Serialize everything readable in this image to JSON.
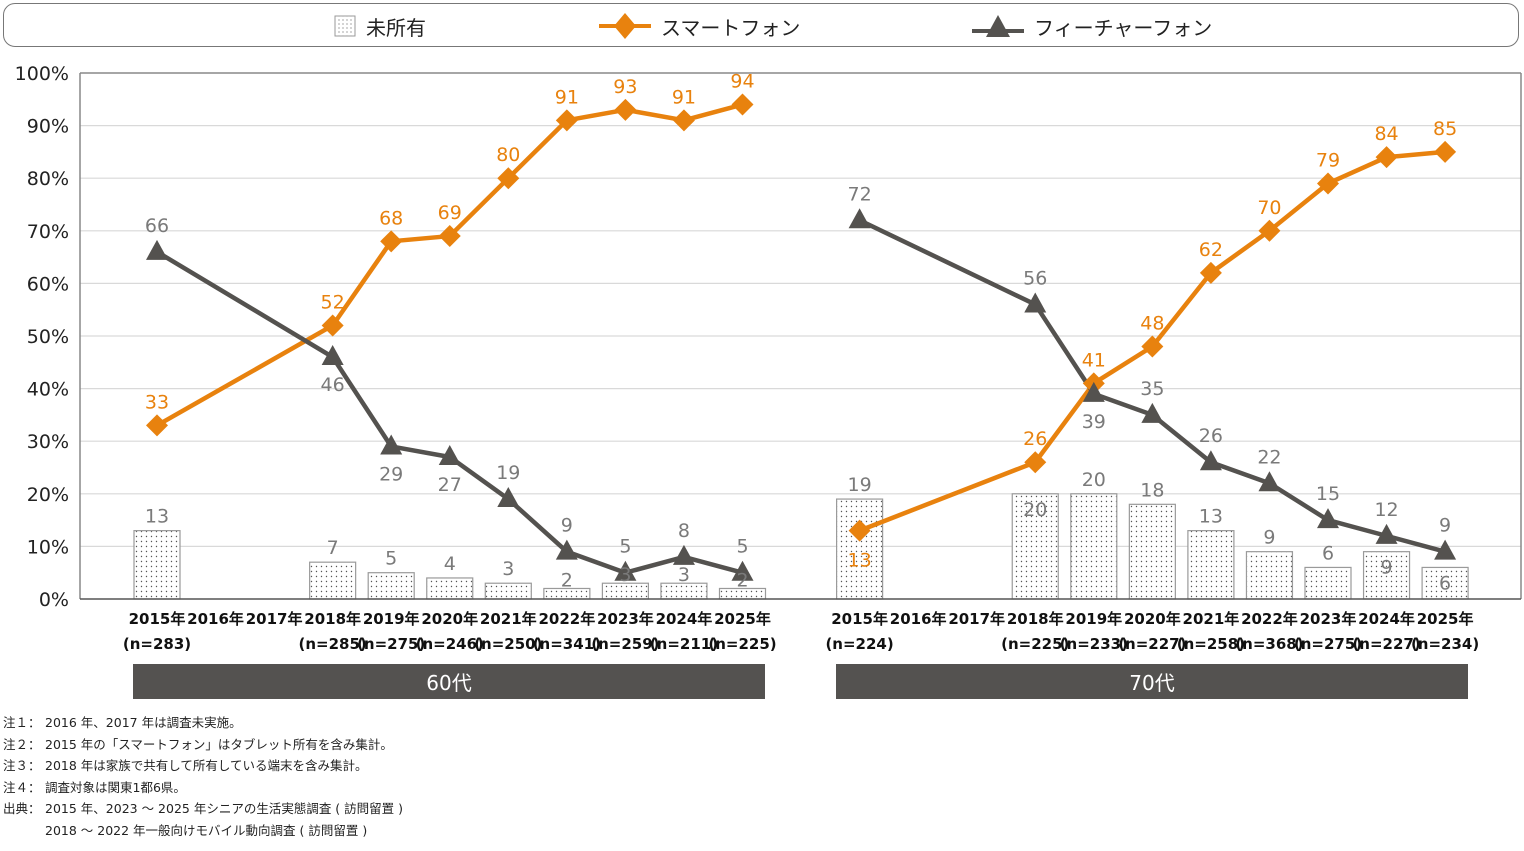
{
  "legend": {
    "items": [
      {
        "name": "未所有",
        "icon": "dotted-box-icon"
      },
      {
        "name": "スマートフォン",
        "icon": "orange-diamond-line-icon"
      },
      {
        "name": "フィーチャーフォン",
        "icon": "dark-triangle-line-icon"
      }
    ]
  },
  "colors": {
    "smartphone": "#E8820E",
    "featurephone": "#54524F",
    "label_gray": "#7A7A7A",
    "bar_border": "#9A9A9A",
    "panel_bar": "#545250"
  },
  "panels": [
    {
      "label": "60代"
    },
    {
      "label": "70代"
    }
  ],
  "chart_data": {
    "type": "bar+line",
    "title": "",
    "xlabel": "",
    "ylabel": "",
    "ylim": [
      0,
      100
    ],
    "yticks": [
      "0%",
      "10%",
      "20%",
      "30%",
      "40%",
      "50%",
      "60%",
      "70%",
      "80%",
      "90%",
      "100%"
    ],
    "grid": true,
    "legend_position": "top",
    "groups": [
      {
        "name": "60代",
        "categories": [
          "2015年",
          "2016年",
          "2017年",
          "2018年",
          "2019年",
          "2020年",
          "2021年",
          "2022年",
          "2023年",
          "2024年",
          "2025年"
        ],
        "n_labels": [
          "(n=283)",
          "",
          "",
          "(n=285)",
          "(n=275)",
          "(n=246)",
          "(n=250)",
          "(n=341)",
          "(n=259)",
          "(n=211)",
          "(n=225)"
        ],
        "series": [
          {
            "name": "未所有",
            "type": "bar",
            "values": [
              13,
              null,
              null,
              7,
              5,
              4,
              3,
              2,
              3,
              3,
              2
            ]
          },
          {
            "name": "スマートフォン",
            "type": "line",
            "values": [
              33,
              null,
              null,
              52,
              68,
              69,
              80,
              91,
              93,
              91,
              94
            ]
          },
          {
            "name": "フィーチャーフォン",
            "type": "line",
            "values": [
              66,
              null,
              null,
              46,
              29,
              27,
              19,
              9,
              5,
              8,
              5
            ]
          }
        ]
      },
      {
        "name": "70代",
        "categories": [
          "2015年",
          "2016年",
          "2017年",
          "2018年",
          "2019年",
          "2020年",
          "2021年",
          "2022年",
          "2023年",
          "2024年",
          "2025年"
        ],
        "n_labels": [
          "(n=224)",
          "",
          "",
          "(n=225)",
          "(n=233)",
          "(n=227)",
          "(n=258)",
          "(n=368)",
          "(n=275)",
          "(n=227)",
          "(n=234)"
        ],
        "series": [
          {
            "name": "未所有",
            "type": "bar",
            "values": [
              19,
              null,
              null,
              20,
              20,
              18,
              13,
              9,
              6,
              9,
              6
            ]
          },
          {
            "name": "スマートフォン",
            "type": "line",
            "values": [
              13,
              null,
              null,
              26,
              41,
              48,
              62,
              70,
              79,
              84,
              85
            ]
          },
          {
            "name": "フィーチャーフォン",
            "type": "line",
            "values": [
              72,
              null,
              null,
              56,
              39,
              35,
              26,
              22,
              15,
              12,
              9
            ]
          }
        ]
      }
    ]
  },
  "notes": [
    {
      "key": "注１：",
      "text": "2016 年、2017 年は調査未実施。"
    },
    {
      "key": "注２：",
      "text": "2015 年の「スマートフォン」はタブレット所有を含み集計。"
    },
    {
      "key": "注３：",
      "text": "2018 年は家族で共有して所有している端末を含み集計。"
    },
    {
      "key": "注４：",
      "text": "調査対象は関東1都6県。"
    },
    {
      "key": "出典：",
      "text": "2015 年、2023 ～ 2025 年シニアの生活実態調査 ( 訪問留置 )"
    },
    {
      "key": "",
      "text": "2018 ～ 2022 年一般向けモバイル動向調査 ( 訪問留置 )"
    }
  ]
}
